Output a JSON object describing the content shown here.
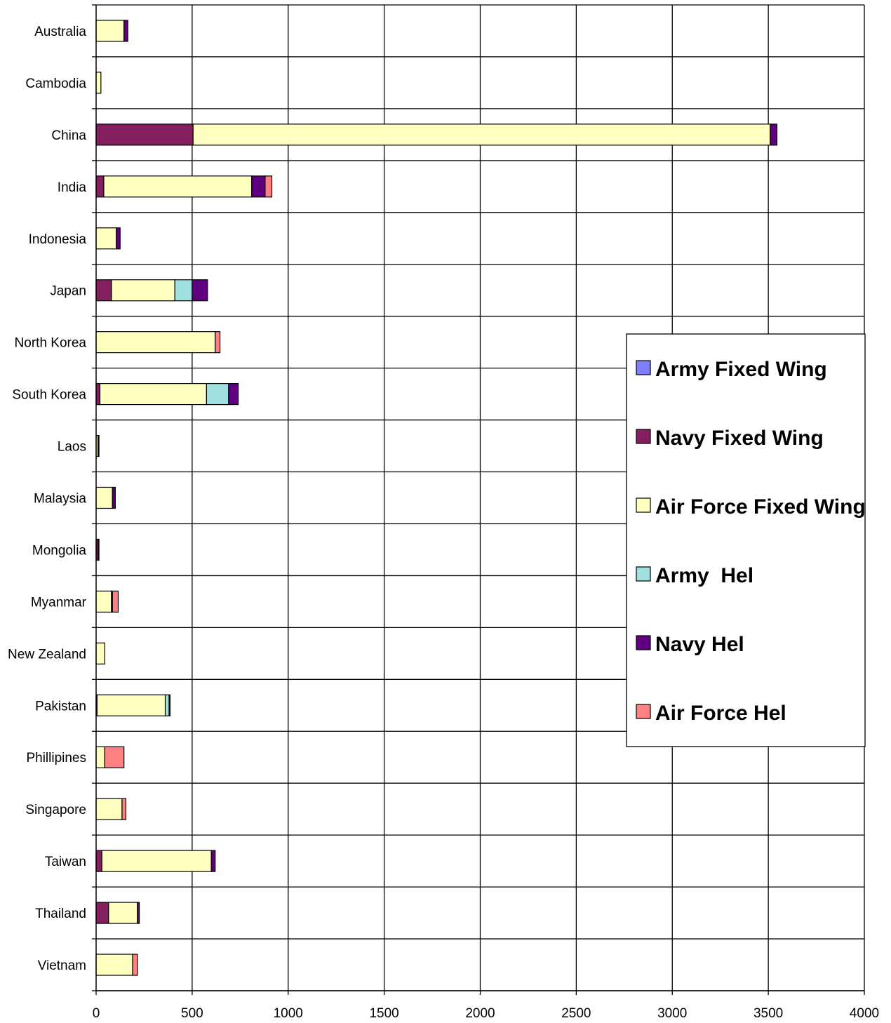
{
  "chart_data": {
    "type": "bar",
    "orientation": "horizontal",
    "stacked": true,
    "grid": true,
    "legend_position": "right",
    "title": "",
    "xlabel": "",
    "ylabel": "",
    "xlim": [
      0,
      4000
    ],
    "x_ticks": [
      0,
      500,
      1000,
      1500,
      2000,
      2500,
      3000,
      3500,
      4000
    ],
    "categories": [
      "Australia",
      "Cambodia",
      "China",
      "India",
      "Indonesia",
      "Japan",
      "North Korea",
      "South Korea",
      "Laos",
      "Malaysia",
      "Mongolia",
      "Myanmar",
      "New Zealand",
      "Pakistan",
      "Phillipines",
      "Singapore",
      "Taiwan",
      "Thailand",
      "Vietnam"
    ],
    "series": [
      {
        "name": "Army Fixed Wing",
        "color": "#8080ff",
        "values": [
          0,
          0,
          0,
          0,
          0,
          0,
          0,
          0,
          0,
          0,
          0,
          0,
          0,
          5,
          0,
          0,
          0,
          0,
          0
        ]
      },
      {
        "name": "Navy Fixed Wing",
        "color": "#842060",
        "values": [
          0,
          0,
          505,
          40,
          0,
          80,
          0,
          20,
          0,
          0,
          10,
          0,
          0,
          0,
          0,
          0,
          30,
          65,
          0
        ]
      },
      {
        "name": "Air Force Fixed Wing",
        "color": "#ffffc0",
        "values": [
          145,
          25,
          3005,
          770,
          105,
          330,
          620,
          555,
          10,
          85,
          0,
          80,
          45,
          355,
          45,
          135,
          570,
          150,
          190
        ]
      },
      {
        "name": "Army  Hel",
        "color": "#a0e0e0",
        "values": [
          0,
          0,
          0,
          0,
          0,
          90,
          0,
          115,
          0,
          0,
          0,
          0,
          0,
          20,
          0,
          0,
          0,
          0,
          0
        ]
      },
      {
        "name": "Navy Hel",
        "color": "#600080",
        "values": [
          20,
          0,
          35,
          70,
          20,
          80,
          0,
          50,
          5,
          15,
          5,
          5,
          0,
          5,
          0,
          0,
          20,
          10,
          0
        ]
      },
      {
        "name": "Air Force Hel",
        "color": "#ff8080",
        "values": [
          0,
          0,
          0,
          35,
          0,
          0,
          25,
          0,
          0,
          0,
          0,
          30,
          0,
          0,
          100,
          20,
          0,
          0,
          25
        ]
      }
    ]
  }
}
